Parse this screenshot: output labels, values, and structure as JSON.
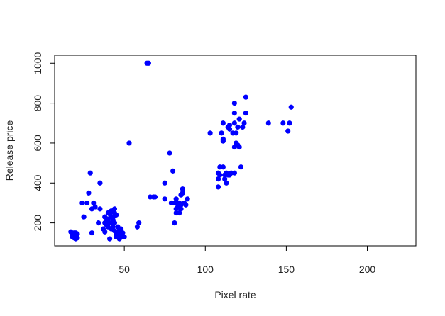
{
  "chart_data": {
    "type": "scatter",
    "xlabel": "Pixel rate",
    "ylabel": "Release price",
    "xlim": [
      7,
      230
    ],
    "ylim": [
      85,
      1040
    ],
    "x_ticks": [
      50,
      100,
      150,
      200
    ],
    "y_ticks": [
      200,
      400,
      600,
      800,
      1000
    ],
    "grid": false,
    "point_color": "#0000ff",
    "series": [
      {
        "points": [
          [
            17,
            155
          ],
          [
            18,
            140
          ],
          [
            18,
            130
          ],
          [
            19,
            150
          ],
          [
            19,
            125
          ],
          [
            20,
            120
          ],
          [
            20,
            135
          ],
          [
            21,
            145
          ],
          [
            21,
            125
          ],
          [
            20,
            150
          ],
          [
            24,
            300
          ],
          [
            25,
            230
          ],
          [
            27,
            300
          ],
          [
            28,
            350
          ],
          [
            29,
            450
          ],
          [
            30,
            270
          ],
          [
            30,
            150
          ],
          [
            31,
            300
          ],
          [
            32,
            280
          ],
          [
            34,
            200
          ],
          [
            35,
            400
          ],
          [
            35,
            270
          ],
          [
            37,
            170
          ],
          [
            38,
            200
          ],
          [
            38,
            155
          ],
          [
            38,
            230
          ],
          [
            39,
            210
          ],
          [
            39,
            190
          ],
          [
            40,
            250
          ],
          [
            40,
            220
          ],
          [
            40,
            180
          ],
          [
            41,
            245
          ],
          [
            41,
            200
          ],
          [
            41,
            120
          ],
          [
            42,
            260
          ],
          [
            42,
            230
          ],
          [
            42,
            200
          ],
          [
            42,
            170
          ],
          [
            43,
            255
          ],
          [
            43,
            215
          ],
          [
            43,
            180
          ],
          [
            44,
            270
          ],
          [
            44,
            250
          ],
          [
            44,
            235
          ],
          [
            44,
            200
          ],
          [
            44,
            160
          ],
          [
            45,
            240
          ],
          [
            45,
            150
          ],
          [
            45,
            130
          ],
          [
            46,
            180
          ],
          [
            46,
            140
          ],
          [
            47,
            165
          ],
          [
            47,
            145
          ],
          [
            47,
            120
          ],
          [
            48,
            170
          ],
          [
            48,
            140
          ],
          [
            48,
            130
          ],
          [
            49,
            150
          ],
          [
            49,
            130
          ],
          [
            50,
            130
          ],
          [
            53,
            600
          ],
          [
            58,
            180
          ],
          [
            59,
            200
          ],
          [
            64,
            1000
          ],
          [
            65,
            1000
          ],
          [
            66,
            330
          ],
          [
            68,
            330
          ],
          [
            69,
            330
          ],
          [
            75,
            400
          ],
          [
            75,
            320
          ],
          [
            78,
            550
          ],
          [
            79,
            300
          ],
          [
            80,
            460
          ],
          [
            81,
            200
          ],
          [
            81,
            300
          ],
          [
            82,
            320
          ],
          [
            82,
            270
          ],
          [
            82,
            250
          ],
          [
            83,
            300
          ],
          [
            83,
            280
          ],
          [
            84,
            250
          ],
          [
            84,
            300
          ],
          [
            85,
            270
          ],
          [
            85,
            290
          ],
          [
            85,
            340
          ],
          [
            86,
            370
          ],
          [
            86,
            350
          ],
          [
            87,
            300
          ],
          [
            88,
            290
          ],
          [
            89,
            320
          ],
          [
            103,
            650
          ],
          [
            108,
            380
          ],
          [
            108,
            420
          ],
          [
            108,
            450
          ],
          [
            109,
            440
          ],
          [
            109,
            480
          ],
          [
            110,
            650
          ],
          [
            111,
            700
          ],
          [
            111,
            620
          ],
          [
            111,
            610
          ],
          [
            111,
            480
          ],
          [
            112,
            440
          ],
          [
            112,
            420
          ],
          [
            113,
            450
          ],
          [
            113,
            400
          ],
          [
            114,
            440
          ],
          [
            114,
            680
          ],
          [
            115,
            670
          ],
          [
            115,
            690
          ],
          [
            115,
            440
          ],
          [
            116,
            450
          ],
          [
            117,
            650
          ],
          [
            118,
            700
          ],
          [
            118,
            580
          ],
          [
            118,
            450
          ],
          [
            118,
            800
          ],
          [
            118,
            750
          ],
          [
            119,
            650
          ],
          [
            119,
            600
          ],
          [
            120,
            680
          ],
          [
            120,
            590
          ],
          [
            121,
            720
          ],
          [
            121,
            580
          ],
          [
            122,
            480
          ],
          [
            123,
            680
          ],
          [
            124,
            700
          ],
          [
            125,
            830
          ],
          [
            125,
            750
          ],
          [
            139,
            700
          ],
          [
            148,
            700
          ],
          [
            151,
            660
          ],
          [
            152,
            700
          ],
          [
            153,
            780
          ]
        ]
      }
    ]
  }
}
